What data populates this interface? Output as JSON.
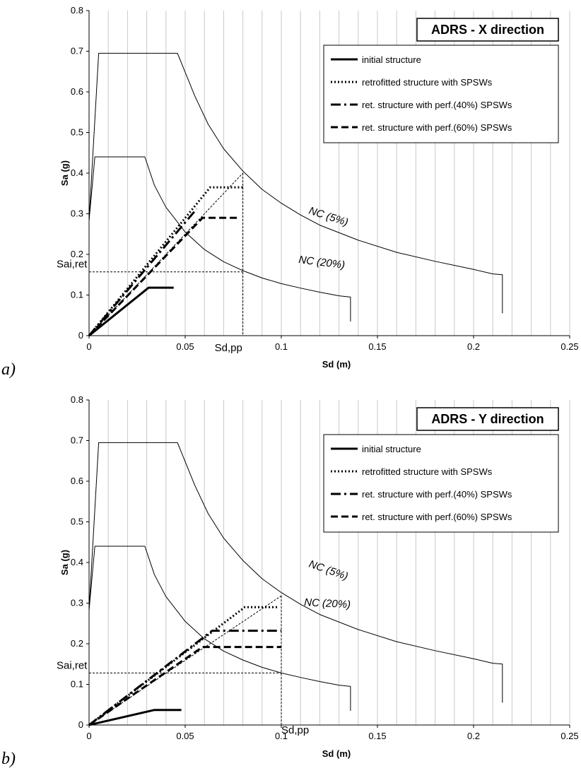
{
  "chart_data": [
    {
      "type": "line",
      "panel": "a)",
      "title": "ADRS - X direction",
      "xlabel": "Sd (m)",
      "ylabel": "Sa (g)",
      "xlim": [
        0,
        0.25
      ],
      "ylim": [
        0,
        0.8
      ],
      "x_ticks": [
        "0",
        "0.05",
        "0.1",
        "0.15",
        "0.2",
        "0.25"
      ],
      "y_ticks": [
        "0",
        "0.1",
        "0.2",
        "0.3",
        "0.4",
        "0.5",
        "0.6",
        "0.7",
        "0.8"
      ],
      "grid": "vertical",
      "legend_position": "top-right",
      "series": [
        {
          "name": "initial structure",
          "style": "solid-thick",
          "x": [
            0,
            0.031,
            0.044
          ],
          "y": [
            0,
            0.118,
            0.118
          ]
        },
        {
          "name": "retrofitted structure with SPSWs",
          "style": "dotted",
          "x": [
            0,
            0.063,
            0.08
          ],
          "y": [
            0,
            0.365,
            0.365
          ]
        },
        {
          "name": "ret. structure with perf.(40%) SPSWs",
          "style": "dash-dot",
          "x": [
            0,
            0.056,
            0.068,
            0.076
          ],
          "y": [
            0,
            0.312,
            null,
            0.312
          ]
        },
        {
          "name": "ret. structure with perf.(60%) SPSWs",
          "style": "dashed",
          "x": [
            0,
            0.059,
            0.078
          ],
          "y": [
            0,
            0.29,
            0.29
          ]
        },
        {
          "name": "NC (5%)",
          "style": "thin",
          "x": [
            0,
            0.005,
            0.046,
            0.055,
            0.062,
            0.07,
            0.08,
            0.09,
            0.1,
            0.11,
            0.12,
            0.14,
            0.16,
            0.18,
            0.2,
            0.21,
            0.215,
            0.215
          ],
          "y": [
            0.283,
            0.695,
            0.695,
            0.59,
            0.52,
            0.46,
            0.405,
            0.36,
            0.326,
            0.297,
            0.272,
            0.235,
            0.205,
            0.183,
            0.163,
            0.152,
            0.15,
            0.055
          ]
        },
        {
          "name": "NC (20%)",
          "style": "thin",
          "x": [
            0,
            0.003,
            0.029,
            0.034,
            0.04,
            0.05,
            0.06,
            0.07,
            0.08,
            0.09,
            0.1,
            0.11,
            0.12,
            0.13,
            0.136,
            0.136
          ],
          "y": [
            0.283,
            0.44,
            0.44,
            0.37,
            0.316,
            0.255,
            0.212,
            0.182,
            0.16,
            0.142,
            0.128,
            0.117,
            0.107,
            0.098,
            0.095,
            0.035
          ]
        }
      ],
      "annotations": {
        "curve_label_1": "NC (5%)",
        "curve_label_2": "NC (20%)",
        "sa_label": "Sai,ret",
        "sd_label": "Sd,pp",
        "performance_point": {
          "sd": 0.08,
          "sa": 0.4
        },
        "sa_ret_value": 0.157
      }
    },
    {
      "type": "line",
      "panel": "b)",
      "title": "ADRS - Y direction",
      "xlabel": "Sd (m)",
      "ylabel": "Sa (g)",
      "xlim": [
        0,
        0.25
      ],
      "ylim": [
        0,
        0.8
      ],
      "x_ticks": [
        "0",
        "0.05",
        "0.1",
        "0.15",
        "0.2",
        "0.25"
      ],
      "y_ticks": [
        "0",
        "0.1",
        "0.2",
        "0.3",
        "0.4",
        "0.5",
        "0.6",
        "0.7",
        "0.8"
      ],
      "grid": "vertical",
      "legend_position": "top-right",
      "series": [
        {
          "name": "initial structure",
          "style": "solid-thick",
          "x": [
            0,
            0.034,
            0.048
          ],
          "y": [
            0,
            0.037,
            0.037
          ]
        },
        {
          "name": "retrofitted structure with SPSWs",
          "style": "dotted",
          "x": [
            0,
            0.081,
            0.098
          ],
          "y": [
            0,
            0.29,
            0.29
          ]
        },
        {
          "name": "ret. structure with perf.(40%) SPSWs",
          "style": "dash-dot",
          "x": [
            0,
            0.064,
            0.1
          ],
          "y": [
            0,
            0.232,
            0.232
          ]
        },
        {
          "name": "ret. structure with perf.(60%) SPSWs",
          "style": "dashed",
          "x": [
            0,
            0.059,
            0.1
          ],
          "y": [
            0,
            0.192,
            0.192
          ]
        },
        {
          "name": "NC (5%)",
          "style": "thin",
          "x": [
            0,
            0.005,
            0.046,
            0.055,
            0.062,
            0.07,
            0.08,
            0.09,
            0.1,
            0.11,
            0.12,
            0.14,
            0.16,
            0.18,
            0.2,
            0.21,
            0.215,
            0.215
          ],
          "y": [
            0.283,
            0.695,
            0.695,
            0.59,
            0.52,
            0.46,
            0.405,
            0.36,
            0.326,
            0.297,
            0.272,
            0.235,
            0.205,
            0.183,
            0.163,
            0.152,
            0.15,
            0.055
          ]
        },
        {
          "name": "NC (20%)",
          "style": "thin",
          "x": [
            0,
            0.003,
            0.029,
            0.034,
            0.04,
            0.05,
            0.06,
            0.07,
            0.08,
            0.09,
            0.1,
            0.11,
            0.12,
            0.13,
            0.136,
            0.136
          ],
          "y": [
            0.283,
            0.44,
            0.44,
            0.37,
            0.316,
            0.255,
            0.212,
            0.182,
            0.16,
            0.142,
            0.128,
            0.117,
            0.107,
            0.098,
            0.095,
            0.035
          ]
        }
      ],
      "annotations": {
        "curve_label_1": "NC (5%)",
        "curve_label_2": "NC (20%)",
        "sa_label": "Sai,ret",
        "sd_label": "Sd,pp",
        "performance_point": {
          "sd": 0.1,
          "sa": 0.318
        },
        "sa_ret_value": 0.128
      }
    }
  ]
}
